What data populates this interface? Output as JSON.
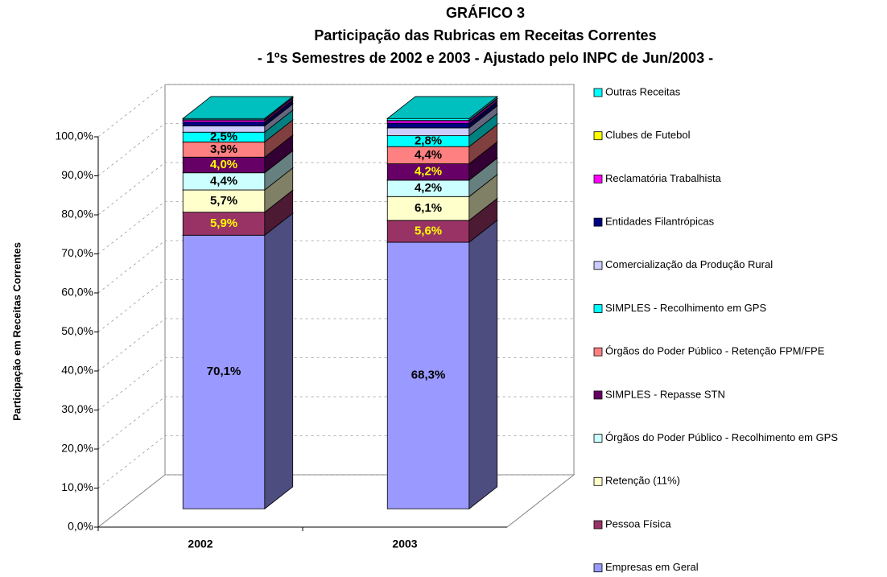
{
  "chart_data": {
    "type": "stacked-bar-3d",
    "title_lines": [
      "GRÁFICO 3",
      "Participação das Rubricas em Receitas Correntes",
      "- 1ºs Semestres de 2002 e 2003 - Ajustado pelo INPC de Jun/2003 -"
    ],
    "y_label": "Participação em Receitas Correntes",
    "categories": [
      "2002",
      "2003"
    ],
    "ylim": [
      0,
      100
    ],
    "yticks": [
      {
        "value": 0,
        "label": "0,0%"
      },
      {
        "value": 10,
        "label": "10,0%"
      },
      {
        "value": 20,
        "label": "20,0%"
      },
      {
        "value": 30,
        "label": "30,0%"
      },
      {
        "value": 40,
        "label": "40,0%"
      },
      {
        "value": 50,
        "label": "50,0%"
      },
      {
        "value": 60,
        "label": "60,0%"
      },
      {
        "value": 70,
        "label": "70,0%"
      },
      {
        "value": 80,
        "label": "80,0%"
      },
      {
        "value": 90,
        "label": "90,0%"
      },
      {
        "value": 100,
        "label": "100,0%"
      }
    ],
    "grid": true,
    "legend": "right",
    "series": [
      {
        "name": "Empresas em Geral",
        "color": "#9999ff",
        "values": [
          70.1,
          68.3
        ],
        "value_labels": [
          "70,1%",
          "68,3%"
        ],
        "label_color": "#000000"
      },
      {
        "name": "Pessoa Física",
        "color": "#993366",
        "values": [
          5.9,
          5.6
        ],
        "value_labels": [
          "5,9%",
          "5,6%"
        ],
        "label_color": "#ffff00"
      },
      {
        "name": "Retenção (11%)",
        "color": "#ffffcc",
        "values": [
          5.7,
          6.1
        ],
        "value_labels": [
          "5,7%",
          "6,1%"
        ],
        "label_color": "#000000"
      },
      {
        "name": "Órgãos do Poder Público - Recolhimento em GPS",
        "color": "#ccffff",
        "values": [
          4.4,
          4.2
        ],
        "value_labels": [
          "4,4%",
          "4,2%"
        ],
        "label_color": "#000000"
      },
      {
        "name": "SIMPLES - Repasse STN",
        "color": "#660066",
        "values": [
          4.0,
          4.2
        ],
        "value_labels": [
          "4,0%",
          "4,2%"
        ],
        "label_color": "#ffff00"
      },
      {
        "name": "Órgãos do Poder Público - Retenção FPM/FPE",
        "color": "#ff8080",
        "values": [
          3.9,
          4.4
        ],
        "value_labels": [
          "3,9%",
          "4,4%"
        ],
        "label_color": "#000000"
      },
      {
        "name": "SIMPLES - Recolhimento em GPS",
        "color": "#00ffff",
        "values": [
          2.5,
          2.8
        ],
        "value_labels": [
          "2,5%",
          "2,8%"
        ],
        "label_color": "#000000"
      },
      {
        "name": "Comercialização da Produção Rural",
        "color": "#ccccff",
        "values": [
          1.6,
          2.0
        ]
      },
      {
        "name": "Entidades Filantrópicas",
        "color": "#000080",
        "values": [
          1.0,
          1.2
        ]
      },
      {
        "name": "Reclamatória Trabalhista",
        "color": "#ff00ff",
        "values": [
          0.5,
          0.6
        ]
      },
      {
        "name": "Clubes de Futebol",
        "color": "#ffff00",
        "values": [
          0.1,
          0.1
        ]
      },
      {
        "name": "Outras Receitas",
        "color": "#00ffff",
        "values": [
          0.3,
          0.5
        ]
      }
    ]
  }
}
